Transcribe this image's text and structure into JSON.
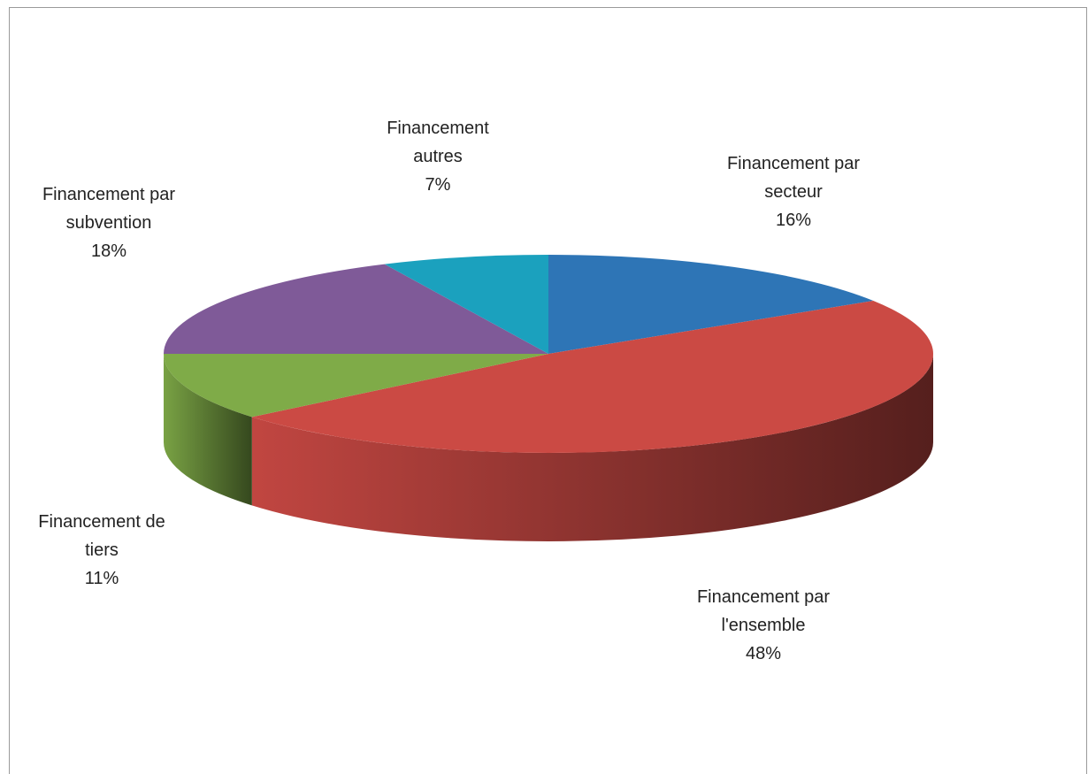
{
  "chart_data": {
    "type": "pie",
    "categories": [
      "Financement par secteur",
      "Financement par l'ensemble",
      "Financement de tiers",
      "Financement par subvention",
      "Financement autres"
    ],
    "values": [
      16,
      48,
      11,
      18,
      7
    ],
    "value_labels": [
      "16%",
      "48%",
      "11%",
      "18%",
      "7%"
    ],
    "colors": [
      "#2e75b6",
      "#cb4a44",
      "#7fab48",
      "#7f5a98",
      "#1ba1be"
    ]
  }
}
